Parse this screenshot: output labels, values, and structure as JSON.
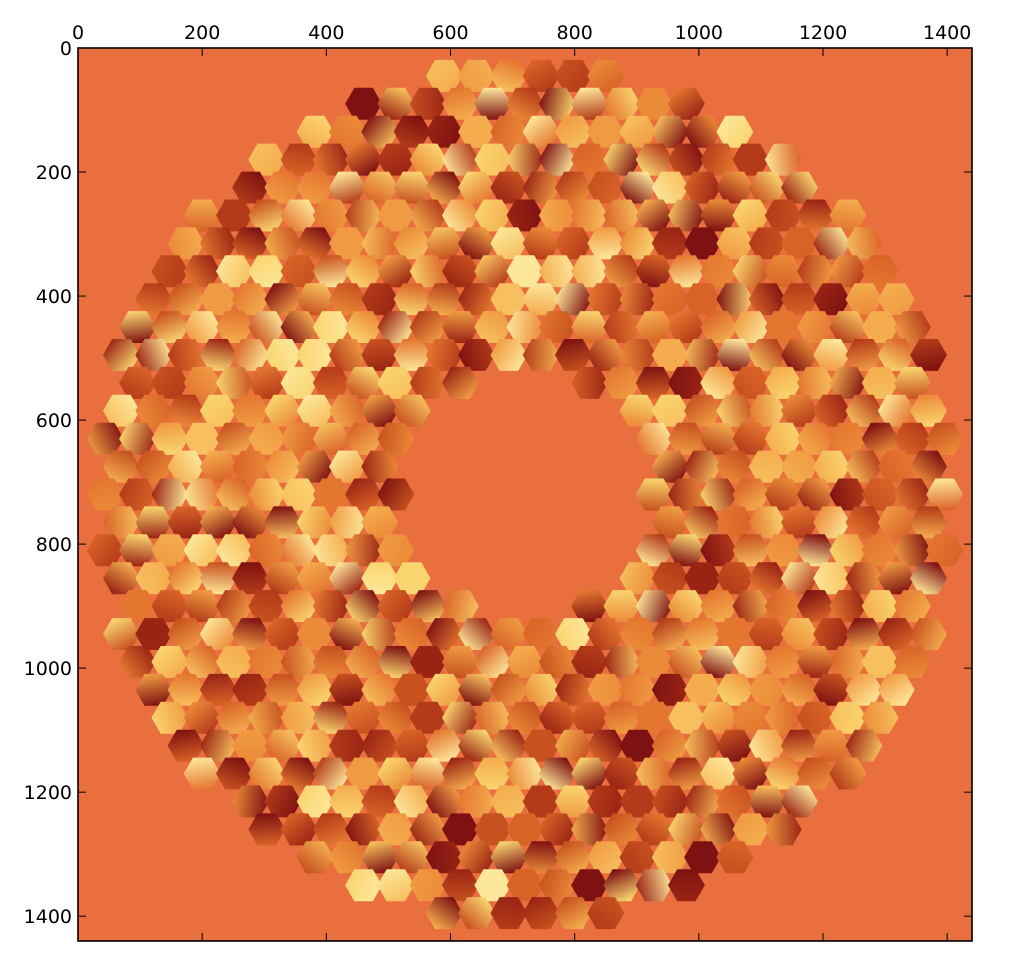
{
  "chart_data": {
    "type": "heatmap",
    "title": "",
    "xlabel": "",
    "ylabel": "",
    "image_extent": {
      "x": [
        0,
        1440
      ],
      "y": [
        0,
        1440
      ]
    },
    "xlim": [
      0,
      1440
    ],
    "ylim": [
      1440,
      0
    ],
    "y_inverted": true,
    "x_ticks_position": "top",
    "x_ticks": [
      0,
      200,
      400,
      600,
      800,
      1000,
      1200,
      1400
    ],
    "y_ticks": [
      0,
      200,
      400,
      600,
      800,
      1000,
      1200,
      1400
    ],
    "x_tick_labels": [
      "0",
      "200",
      "400",
      "600",
      "800",
      "1000",
      "1200",
      "1400"
    ],
    "y_tick_labels": [
      "0",
      "200",
      "400",
      "600",
      "800",
      "1000",
      "1200",
      "1400"
    ],
    "grid": false,
    "colormap": "afmhot",
    "background_color": "#e96f3e",
    "aperture": {
      "shape": "annulus of hexagonal segments",
      "center": [
        720,
        720
      ],
      "outer_radius": 690,
      "inner_radius": 190,
      "hex_pitch_x": 52,
      "hex_pitch_y": 45
    }
  }
}
